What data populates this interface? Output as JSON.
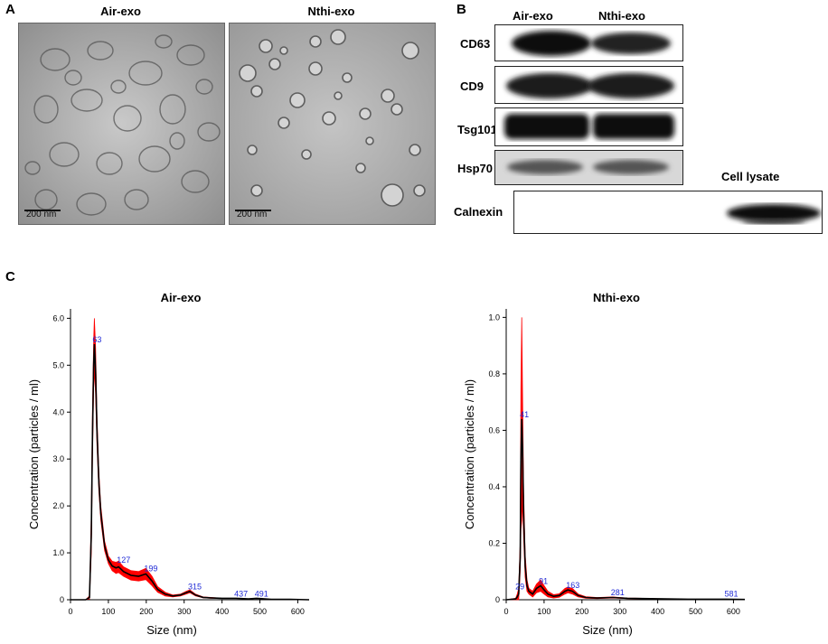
{
  "panels": {
    "a": {
      "letter": "A",
      "images": [
        {
          "title": "Air-exo",
          "scale_bar": "200 nm"
        },
        {
          "title": "Nthi-exo",
          "scale_bar": "200 nm"
        }
      ]
    },
    "b": {
      "letter": "B",
      "lanes": [
        "Air-exo",
        "Nthi-exo"
      ],
      "cell_lysate_label": "Cell lysate",
      "markers": [
        "CD63",
        "CD9",
        "Tsg101",
        "Hsp70",
        "Calnexin"
      ]
    },
    "c": {
      "letter": "C"
    }
  },
  "chart_data": [
    {
      "type": "line",
      "title": "Air-exo",
      "xlabel": "Size (nm)",
      "ylabel": "Concentration (particles / ml)",
      "xlim": [
        0,
        630
      ],
      "ylim": [
        0,
        6.2
      ],
      "xticks": [
        0,
        100,
        200,
        300,
        400,
        500,
        600
      ],
      "yticks": [
        "0",
        "1.0",
        "2.0",
        "3.0",
        "4.0",
        "5.0",
        "6.0"
      ],
      "peak_labels": [
        {
          "x": 63,
          "y": 5.45,
          "text": "63"
        },
        {
          "x": 127,
          "y": 0.75,
          "text": "127"
        },
        {
          "x": 199,
          "y": 0.57,
          "text": "199"
        },
        {
          "x": 315,
          "y": 0.18,
          "text": "315"
        },
        {
          "x": 437,
          "y": 0.03,
          "text": "437"
        },
        {
          "x": 491,
          "y": 0.03,
          "text": "491"
        }
      ],
      "series": [
        {
          "color": "#000000",
          "band_color": "#ff0000",
          "x": [
            0,
            40,
            50,
            55,
            58,
            61,
            63,
            66,
            70,
            75,
            80,
            90,
            100,
            110,
            120,
            127,
            140,
            160,
            180,
            199,
            215,
            230,
            250,
            270,
            290,
            305,
            315,
            330,
            350,
            370,
            400,
            437,
            470,
            491,
            530,
            580,
            630
          ],
          "y": [
            0,
            0,
            0.05,
            1.4,
            3.5,
            5.0,
            5.45,
            4.9,
            3.6,
            2.5,
            1.85,
            1.15,
            0.85,
            0.72,
            0.68,
            0.7,
            0.6,
            0.52,
            0.5,
            0.55,
            0.4,
            0.22,
            0.12,
            0.08,
            0.1,
            0.15,
            0.18,
            0.1,
            0.05,
            0.04,
            0.03,
            0.03,
            0.02,
            0.03,
            0.01,
            0.01,
            0.0
          ],
          "band": [
            0,
            0,
            0.03,
            0.4,
            0.5,
            0.5,
            0.55,
            0.5,
            0.3,
            0.2,
            0.15,
            0.1,
            0.08,
            0.1,
            0.12,
            0.12,
            0.1,
            0.1,
            0.1,
            0.12,
            0.1,
            0.06,
            0.04,
            0.02,
            0.02,
            0.03,
            0.03,
            0.02,
            0.01,
            0.01,
            0.0,
            0.0,
            0.0,
            0.0,
            0.0,
            0.0,
            0.0
          ]
        }
      ]
    },
    {
      "type": "line",
      "title": "Nthi-exo",
      "xlabel": "Size (nm)",
      "ylabel": "Concentration (particles / ml)",
      "xlim": [
        0,
        630
      ],
      "ylim": [
        0,
        1.03
      ],
      "xticks": [
        0,
        100,
        200,
        300,
        400,
        500,
        600
      ],
      "yticks": [
        "0",
        "0.2",
        "0.4",
        "0.6",
        "0.8",
        "1.0"
      ],
      "peak_labels": [
        {
          "x": 29,
          "y": 0.03,
          "text": "29"
        },
        {
          "x": 41,
          "y": 0.64,
          "text": "41"
        },
        {
          "x": 91,
          "y": 0.05,
          "text": "91"
        },
        {
          "x": 163,
          "y": 0.035,
          "text": "163"
        },
        {
          "x": 281,
          "y": 0.01,
          "text": "281"
        },
        {
          "x": 581,
          "y": 0.005,
          "text": "581"
        }
      ],
      "series": [
        {
          "color": "#000000",
          "band_color": "#ff0000",
          "x": [
            0,
            25,
            29,
            33,
            37,
            39,
            41,
            43,
            46,
            50,
            55,
            60,
            70,
            80,
            91,
            100,
            110,
            125,
            140,
            155,
            163,
            175,
            190,
            210,
            240,
            281,
            320,
            360,
            420,
            480,
            540,
            581,
            630
          ],
          "y": [
            0,
            0.003,
            0.01,
            0.02,
            0.15,
            0.5,
            0.64,
            0.55,
            0.3,
            0.12,
            0.05,
            0.03,
            0.02,
            0.04,
            0.05,
            0.035,
            0.02,
            0.012,
            0.015,
            0.03,
            0.035,
            0.03,
            0.015,
            0.008,
            0.006,
            0.008,
            0.005,
            0.004,
            0.003,
            0.002,
            0.002,
            0.002,
            0.001
          ],
          "band": [
            0,
            0.002,
            0.01,
            0.02,
            0.05,
            0.25,
            0.36,
            0.2,
            0.08,
            0.04,
            0.02,
            0.01,
            0.01,
            0.015,
            0.02,
            0.015,
            0.01,
            0.006,
            0.006,
            0.01,
            0.01,
            0.01,
            0.005,
            0.003,
            0.002,
            0.002,
            0.001,
            0.001,
            0.0,
            0.0,
            0.0,
            0.0,
            0.0
          ]
        }
      ]
    }
  ]
}
